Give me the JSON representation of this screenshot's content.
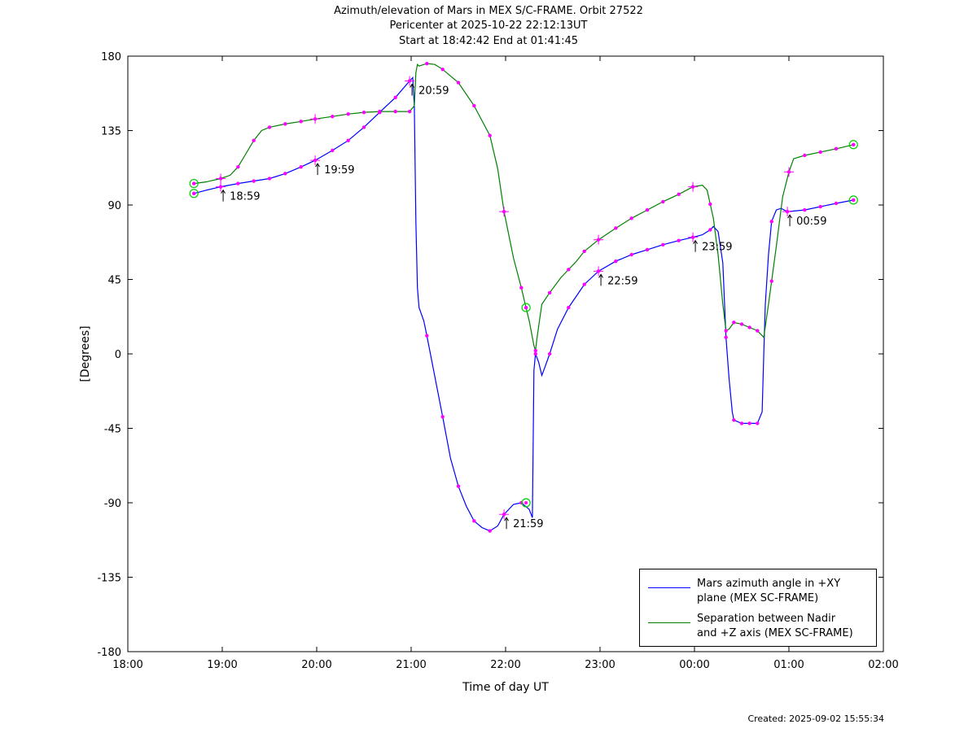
{
  "header": {
    "title": "Azimuth/elevation of Mars in MEX S/C-FRAME.  Orbit 27522",
    "pericenter": "Pericenter at 2025-10-22 22:12:13UT",
    "start_end": "Start at 18:42:42 End at 01:41:45"
  },
  "footer": {
    "created": "Created: 2025-09-02 15:55:34"
  },
  "legend": {
    "azimuth_line1": "Mars azimuth angle in +XY",
    "azimuth_line2": "plane (MEX SC-FRAME)",
    "separation_line1": "Separation between Nadir",
    "separation_line2": "and +Z axis (MEX SC-FRAME)"
  },
  "chart_data": {
    "type": "line",
    "title": "Azimuth/elevation of Mars in MEX S/C-FRAME.  Orbit 27522",
    "xlabel": "Time of day UT",
    "ylabel": "[Degrees]",
    "xlim": [
      "18:00",
      "02:00"
    ],
    "ylim": [
      -180,
      180
    ],
    "x_ticks": [
      "18:00",
      "19:00",
      "20:00",
      "21:00",
      "22:00",
      "23:00",
      "00:00",
      "01:00",
      "02:00"
    ],
    "y_ticks": [
      180,
      135,
      90,
      45,
      0,
      -45,
      -90,
      -135,
      -180
    ],
    "colors": {
      "azimuth": "#0000ff",
      "separation": "#008000",
      "markers": "#ff00ff",
      "circles": "#00cc00"
    },
    "series": [
      {
        "name": "Mars azimuth angle in +XY plane (MEX SC-FRAME)",
        "color": "#0000ff",
        "points": [
          [
            "18:42",
            97
          ],
          [
            "18:50",
            99
          ],
          [
            "18:59",
            101
          ],
          [
            "19:10",
            103
          ],
          [
            "19:20",
            104.5
          ],
          [
            "19:30",
            106
          ],
          [
            "19:40",
            109
          ],
          [
            "19:50",
            113
          ],
          [
            "19:59",
            117
          ],
          [
            "20:10",
            123
          ],
          [
            "20:20",
            129
          ],
          [
            "20:30",
            137
          ],
          [
            "20:40",
            146
          ],
          [
            "20:50",
            155
          ],
          [
            "20:59",
            165
          ],
          [
            "21:01",
            167
          ],
          [
            "21:02",
            150
          ],
          [
            "21:03",
            80
          ],
          [
            "21:04",
            40
          ],
          [
            "21:05",
            28
          ],
          [
            "21:08",
            20
          ],
          [
            "21:10",
            11
          ],
          [
            "21:20",
            -38
          ],
          [
            "21:25",
            -63
          ],
          [
            "21:30",
            -80
          ],
          [
            "21:35",
            -92
          ],
          [
            "21:40",
            -101
          ],
          [
            "21:45",
            -105
          ],
          [
            "21:50",
            -107
          ],
          [
            "21:55",
            -104
          ],
          [
            "21:59",
            -97
          ],
          [
            "22:05",
            -91
          ],
          [
            "22:10",
            -90
          ],
          [
            "22:15",
            -94
          ],
          [
            "22:17",
            -99
          ],
          [
            "22:18",
            -10
          ],
          [
            "22:19",
            0
          ],
          [
            "22:21",
            -5
          ],
          [
            "22:23",
            -13
          ],
          [
            "22:25",
            -8
          ],
          [
            "22:28",
            0
          ],
          [
            "22:33",
            15
          ],
          [
            "22:40",
            28
          ],
          [
            "22:50",
            42
          ],
          [
            "22:59",
            50
          ],
          [
            "23:10",
            56
          ],
          [
            "23:20",
            60
          ],
          [
            "23:30",
            63
          ],
          [
            "23:40",
            66
          ],
          [
            "23:50",
            68.5
          ],
          [
            "23:59",
            70.5
          ],
          [
            "00:05",
            72
          ],
          [
            "00:10",
            75
          ],
          [
            "00:12",
            77
          ],
          [
            "00:15",
            74
          ],
          [
            "00:18",
            55
          ],
          [
            "00:20",
            10
          ],
          [
            "00:22",
            -15
          ],
          [
            "00:24",
            -35
          ],
          [
            "00:25",
            -40
          ],
          [
            "00:30",
            -42
          ],
          [
            "00:35",
            -42
          ],
          [
            "00:40",
            -42
          ],
          [
            "00:43",
            -35
          ],
          [
            "00:44",
            0
          ],
          [
            "00:45",
            30
          ],
          [
            "00:47",
            60
          ],
          [
            "00:49",
            80
          ],
          [
            "00:52",
            87
          ],
          [
            "00:55",
            88
          ],
          [
            "00:59",
            86
          ],
          [
            "01:10",
            87
          ],
          [
            "01:20",
            89
          ],
          [
            "01:30",
            91
          ],
          [
            "01:41",
            93
          ]
        ]
      },
      {
        "name": "Separation between Nadir and +Z axis (MEX SC-FRAME)",
        "color": "#008000",
        "points": [
          [
            "18:42",
            103
          ],
          [
            "18:50",
            104
          ],
          [
            "18:59",
            106
          ],
          [
            "19:05",
            108
          ],
          [
            "19:10",
            113
          ],
          [
            "19:15",
            121
          ],
          [
            "19:20",
            129
          ],
          [
            "19:25",
            135
          ],
          [
            "19:30",
            137
          ],
          [
            "19:40",
            139
          ],
          [
            "19:50",
            140.5
          ],
          [
            "19:59",
            142
          ],
          [
            "20:10",
            143.5
          ],
          [
            "20:20",
            145
          ],
          [
            "20:30",
            146
          ],
          [
            "20:40",
            146.5
          ],
          [
            "20:50",
            146.5
          ],
          [
            "20:59",
            146.5
          ],
          [
            "21:02",
            150
          ],
          [
            "21:03",
            170
          ],
          [
            "21:04",
            175
          ],
          [
            "21:05",
            174
          ],
          [
            "21:10",
            175.5
          ],
          [
            "21:15",
            175
          ],
          [
            "21:20",
            172
          ],
          [
            "21:30",
            164
          ],
          [
            "21:40",
            150
          ],
          [
            "21:50",
            132
          ],
          [
            "21:55",
            112
          ],
          [
            "21:59",
            86
          ],
          [
            "22:05",
            58
          ],
          [
            "22:10",
            40
          ],
          [
            "22:13",
            28
          ],
          [
            "22:15",
            20
          ],
          [
            "22:18",
            5
          ],
          [
            "22:19",
            2
          ],
          [
            "22:20",
            10
          ],
          [
            "22:23",
            30
          ],
          [
            "22:28",
            37
          ],
          [
            "22:35",
            46
          ],
          [
            "22:45",
            56
          ],
          [
            "22:50",
            62
          ],
          [
            "22:59",
            69
          ],
          [
            "23:10",
            76
          ],
          [
            "23:20",
            82
          ],
          [
            "23:30",
            87
          ],
          [
            "23:40",
            92
          ],
          [
            "23:50",
            96.5
          ],
          [
            "23:59",
            101
          ],
          [
            "00:05",
            102
          ],
          [
            "00:08",
            99
          ],
          [
            "00:12",
            82
          ],
          [
            "00:15",
            60
          ],
          [
            "00:18",
            30
          ],
          [
            "00:20",
            14
          ],
          [
            "00:22",
            15
          ],
          [
            "00:25",
            19
          ],
          [
            "00:30",
            18
          ],
          [
            "00:35",
            16
          ],
          [
            "00:40",
            14
          ],
          [
            "00:42",
            12
          ],
          [
            "00:44",
            10
          ],
          [
            "00:47",
            30
          ],
          [
            "00:52",
            65
          ],
          [
            "00:56",
            95
          ],
          [
            "01:00",
            110
          ],
          [
            "01:03",
            118
          ],
          [
            "01:10",
            120
          ],
          [
            "01:20",
            122
          ],
          [
            "01:30",
            124
          ],
          [
            "01:41",
            126.5
          ]
        ]
      }
    ],
    "markers": {
      "azimuth": [
        "18:42",
        "18:59",
        "19:10",
        "19:20",
        "19:30",
        "19:40",
        "19:50",
        "19:59",
        "20:10",
        "20:20",
        "20:30",
        "20:40",
        "20:50",
        "20:59",
        "21:10",
        "21:20",
        "21:30",
        "21:40",
        "21:50",
        "21:59",
        "22:10",
        "22:19",
        "22:28",
        "22:40",
        "22:50",
        "22:59",
        "23:10",
        "23:20",
        "23:30",
        "23:40",
        "23:50",
        "23:59",
        "00:10",
        "00:20",
        "00:25",
        "00:30",
        "00:35",
        "00:40",
        "00:49",
        "00:59",
        "01:10",
        "01:20",
        "01:30",
        "01:41"
      ],
      "separation": [
        "18:42",
        "18:59",
        "19:10",
        "19:20",
        "19:30",
        "19:40",
        "19:50",
        "19:59",
        "20:10",
        "20:20",
        "20:30",
        "20:40",
        "20:50",
        "20:59",
        "21:10",
        "21:20",
        "21:30",
        "21:40",
        "21:50",
        "21:59",
        "22:10",
        "22:13",
        "22:19",
        "22:28",
        "22:40",
        "22:50",
        "22:59",
        "23:10",
        "23:20",
        "23:30",
        "23:40",
        "23:50",
        "23:59",
        "00:10",
        "00:20",
        "00:25",
        "00:30",
        "00:35",
        "00:40",
        "00:49",
        "01:00",
        "01:10",
        "01:20",
        "01:30",
        "01:41"
      ]
    },
    "plus_markers": [
      [
        "18:59",
        101
      ],
      [
        "18:59",
        106
      ],
      [
        "19:59",
        117
      ],
      [
        "19:59",
        142
      ],
      [
        "20:59",
        165
      ],
      [
        "21:59",
        -97
      ],
      [
        "21:59",
        86
      ],
      [
        "22:59",
        50
      ],
      [
        "22:59",
        69
      ],
      [
        "23:59",
        70.5
      ],
      [
        "23:59",
        101
      ],
      [
        "00:59",
        86
      ],
      [
        "01:00",
        110
      ]
    ],
    "circle_markers": [
      [
        "18:42",
        97
      ],
      [
        "18:42",
        103
      ],
      [
        "22:13",
        28
      ],
      [
        "22:13",
        -90
      ],
      [
        "01:41",
        93
      ],
      [
        "01:41",
        126.5
      ]
    ],
    "annotations": [
      {
        "time": "18:59",
        "y": 101,
        "label": "18:59"
      },
      {
        "time": "19:59",
        "y": 117,
        "label": "19:59"
      },
      {
        "time": "20:59",
        "y": 165,
        "label": "20:59"
      },
      {
        "time": "21:59",
        "y": -97,
        "label": "21:59"
      },
      {
        "time": "22:59",
        "y": 50,
        "label": "22:59"
      },
      {
        "time": "23:59",
        "y": 70.5,
        "label": "23:59"
      },
      {
        "time": "00:59",
        "y": 86,
        "label": "00:59"
      }
    ]
  }
}
